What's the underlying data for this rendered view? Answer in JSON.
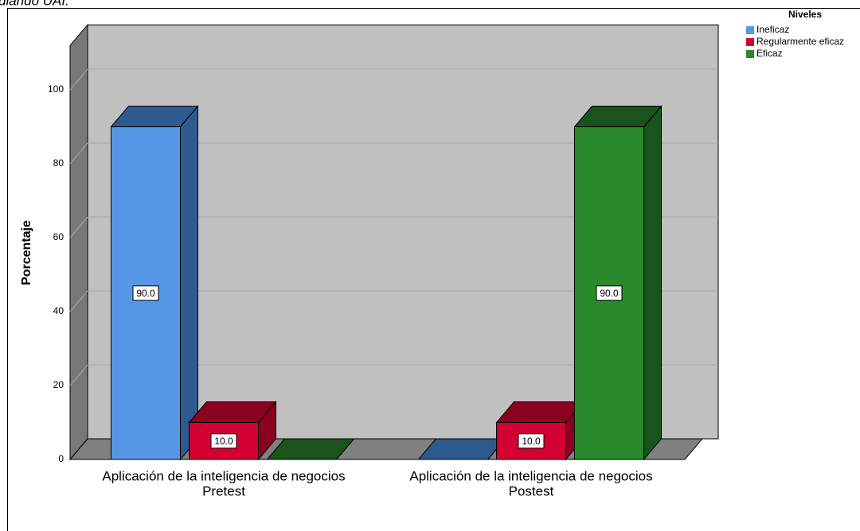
{
  "top_text": "diando UAI.",
  "chart_data": {
    "type": "bar3d",
    "y_label": "Porcentaje",
    "legend_title": "Niveles",
    "legend": "top-right",
    "categories": [
      [
        "Aplicación de la inteligencia de negocios",
        "Pretest"
      ],
      [
        "Aplicación de la inteligencia de negocios",
        "Postest"
      ]
    ],
    "series": [
      {
        "name": "Ineficaz",
        "color": "#5596e6",
        "side_color": "#2f5a8f",
        "values": [
          90,
          0
        ],
        "value_labels": [
          "90.0",
          null
        ]
      },
      {
        "name": "Regularmente eficaz",
        "color": "#d50032",
        "side_color": "#8a0020",
        "values": [
          10,
          10
        ],
        "value_labels": [
          "10.0",
          "10.0"
        ]
      },
      {
        "name": "Eficaz",
        "color": "#298a2b",
        "side_color": "#1a531c",
        "values": [
          0,
          90
        ],
        "value_labels": [
          null,
          "90.0"
        ]
      }
    ],
    "ylim": [
      0,
      112
    ],
    "yticks": [
      0,
      20,
      40,
      60,
      80,
      100
    ],
    "grid": true
  }
}
